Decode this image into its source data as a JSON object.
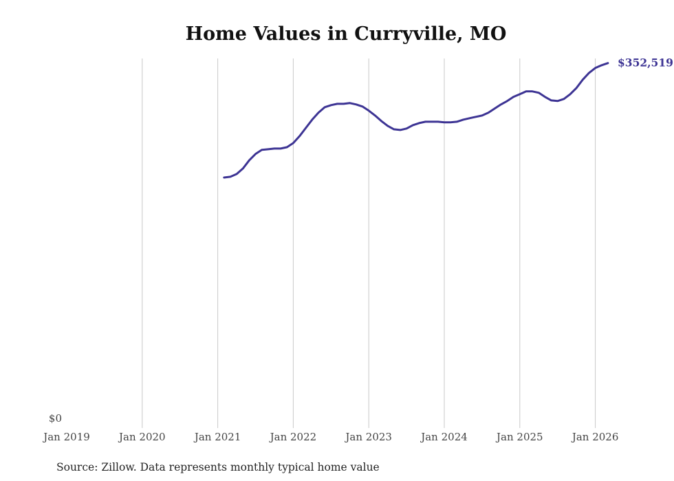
{
  "chart_data": {
    "type": "line",
    "title": "Home Values in Curryville, MO",
    "xlabel": "",
    "ylabel": "",
    "x_ticks": [
      "Jan 2019",
      "Jan 2020",
      "Jan 2021",
      "Jan 2022",
      "Jan 2023",
      "Jan 2024",
      "Jan 2025",
      "Jan 2026"
    ],
    "y_ticks": [
      "$0"
    ],
    "ylim": [
      0,
      357000
    ],
    "xlim": [
      "2019-01",
      "2026-11"
    ],
    "grid": "vertical",
    "series_color": "#3d3494",
    "end_label": "$352,519",
    "source": "Source: Zillow. Data represents monthly typical home value",
    "series": [
      {
        "name": "Typical home value",
        "start": "2021-02",
        "values": [
          242000,
          242700,
          245400,
          250700,
          258700,
          264700,
          268700,
          269300,
          270000,
          270000,
          271300,
          275300,
          282000,
          289900,
          297900,
          304600,
          309900,
          311900,
          313200,
          313200,
          313900,
          312600,
          310600,
          306600,
          301900,
          296600,
          291900,
          288600,
          287900,
          289300,
          292600,
          294600,
          295900,
          295900,
          295900,
          295300,
          295300,
          295900,
          297900,
          299300,
          300600,
          301900,
          304600,
          308600,
          312600,
          315900,
          319900,
          322500,
          325200,
          325200,
          323900,
          319900,
          316500,
          315900,
          317900,
          322500,
          328500,
          336500,
          343100,
          347800,
          350500,
          352519
        ]
      }
    ]
  }
}
